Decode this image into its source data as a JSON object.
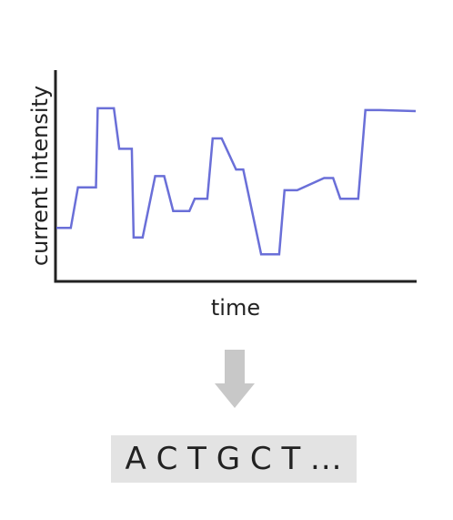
{
  "chart_data": {
    "type": "line",
    "step": true,
    "xlabel": "time",
    "ylabel": "current intensity",
    "x_ticks": false,
    "y_ticks": false,
    "grid": false,
    "series": [
      {
        "x": [
          0,
          4,
          6,
          11,
          11.5,
          16,
          17.5,
          21,
          21.5,
          24,
          27.5,
          30,
          32.5,
          37,
          38.5,
          42,
          43.5,
          46,
          50,
          52,
          57,
          62,
          63.5,
          67,
          74.5,
          77,
          79,
          84,
          86,
          90,
          100
        ],
        "y": [
          0.24,
          0.24,
          0.455,
          0.455,
          0.875,
          0.875,
          0.66,
          0.66,
          0.19,
          0.19,
          0.515,
          0.515,
          0.33,
          0.33,
          0.395,
          0.395,
          0.715,
          0.715,
          0.55,
          0.55,
          0.1,
          0.1,
          0.44,
          0.44,
          0.505,
          0.505,
          0.395,
          0.395,
          0.865,
          0.865,
          0.86
        ],
        "color": "#6a6fd8"
      }
    ]
  },
  "diagram": {
    "arrow_color": "#c8c8c8",
    "sequence_box_color": "#e3e3e3",
    "sequence": "A C T G C T ..."
  }
}
